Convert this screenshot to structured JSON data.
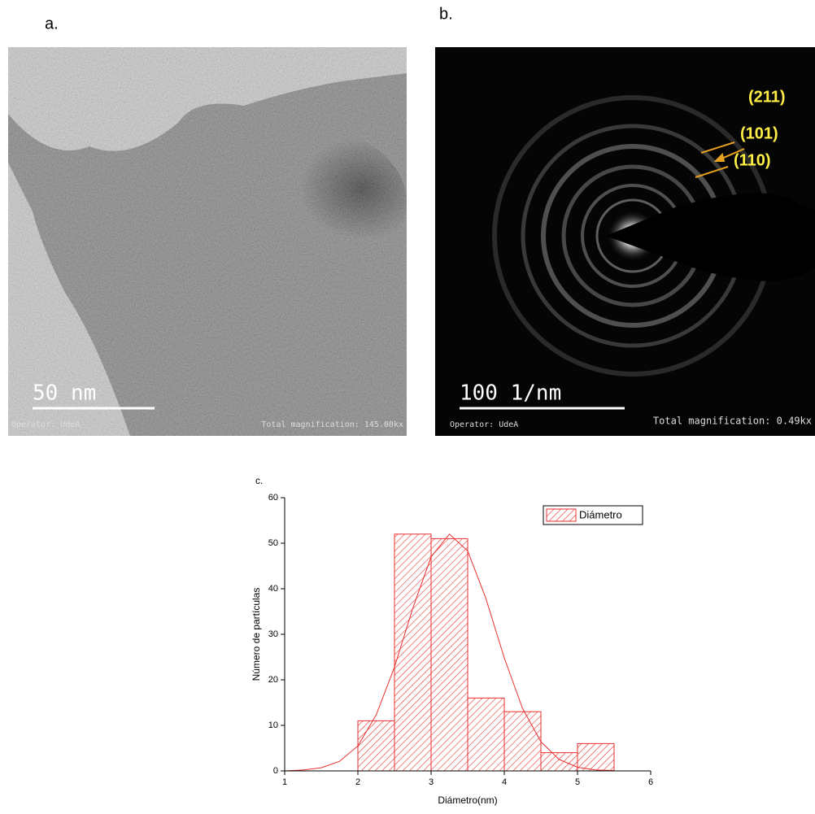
{
  "panels": {
    "a": {
      "label": "a.",
      "scale_bar": "50 nm",
      "operator": "Operator: UdeA",
      "magnification": "Total magnification: 145.00kx"
    },
    "b": {
      "label": "b.",
      "scale_bar": "100 1/nm",
      "operator": "Operator: UdeA",
      "magnification": "Total magnification: 0.49kx",
      "rings": [
        "(211)",
        "(101)",
        "(110)"
      ]
    }
  },
  "chart_data": {
    "type": "histogram",
    "panel_label": "c.",
    "xlabel": "Diámetro(nm)",
    "ylabel": "Número de partículas",
    "bins": [
      2,
      2.5,
      3,
      3.5,
      4,
      4.5,
      5,
      5.5
    ],
    "series": [
      {
        "name": "Diámetro",
        "color": "#e8302f",
        "values": [
          11,
          52,
          51,
          16,
          13,
          4,
          6
        ]
      }
    ],
    "fit": {
      "color": "#e8302f",
      "x": [
        1,
        1.25,
        1.5,
        1.75,
        2,
        2.25,
        2.5,
        2.75,
        3,
        3.25,
        3.5,
        3.75,
        4,
        4.25,
        4.5,
        4.75,
        5,
        5.25,
        5.5
      ],
      "values": [
        0,
        0.2,
        0.7,
        2.1,
        5.5,
        12.3,
        22.8,
        35.7,
        47,
        52,
        48.3,
        37.8,
        24.8,
        13.7,
        6.4,
        2.5,
        0.8,
        0.2,
        0.1
      ]
    },
    "xlim": [
      1,
      6
    ],
    "ylim": [
      0,
      60
    ],
    "xticks": [
      1,
      2,
      3,
      4,
      5,
      6
    ],
    "yticks": [
      0,
      10,
      20,
      30,
      40,
      50,
      60
    ],
    "legend": "upper right"
  }
}
